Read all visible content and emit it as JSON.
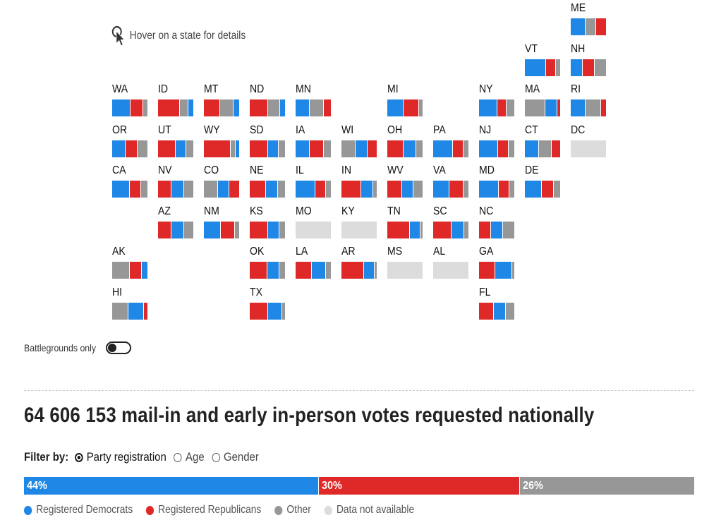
{
  "hint": {
    "text": "Hover on a state for details",
    "icon": "pointer-cursor-icon"
  },
  "colors": {
    "dem": "#1f87e5",
    "rep": "#df2929",
    "other": "#979797",
    "na": "#dcdcdc"
  },
  "states": [
    {
      "abbr": "ME",
      "shares": [
        0.42,
        0.3,
        0.28
      ],
      "order": [
        "dem",
        "oth",
        "rep"
      ]
    },
    {
      "abbr": "VT",
      "shares": [
        0.6,
        0.28,
        0.12
      ],
      "order": [
        "dem",
        "rep",
        "oth"
      ]
    },
    {
      "abbr": "NH",
      "shares": [
        0.34,
        0.34,
        0.32
      ],
      "order": [
        "dem",
        "rep",
        "oth"
      ]
    },
    {
      "abbr": "WA",
      "shares": [
        0.52,
        0.36,
        0.12
      ],
      "order": [
        "dem",
        "rep",
        "oth"
      ]
    },
    {
      "abbr": "ID",
      "shares": [
        0.62,
        0.22,
        0.16
      ],
      "order": [
        "rep",
        "oth",
        "dem"
      ]
    },
    {
      "abbr": "MT",
      "shares": [
        0.46,
        0.38,
        0.16
      ],
      "order": [
        "rep",
        "oth",
        "dem"
      ]
    },
    {
      "abbr": "ND",
      "shares": [
        0.52,
        0.34,
        0.14
      ],
      "order": [
        "rep",
        "oth",
        "dem"
      ]
    },
    {
      "abbr": "MN",
      "shares": [
        0.4,
        0.4,
        0.2
      ],
      "order": [
        "dem",
        "oth",
        "rep"
      ]
    },
    {
      "abbr": "MI",
      "shares": [
        0.46,
        0.44,
        0.1
      ],
      "order": [
        "dem",
        "rep",
        "oth"
      ]
    },
    {
      "abbr": "NY",
      "shares": [
        0.52,
        0.26,
        0.22
      ],
      "order": [
        "dem",
        "rep",
        "oth"
      ]
    },
    {
      "abbr": "MA",
      "shares": [
        0.58,
        0.34,
        0.08
      ],
      "order": [
        "oth",
        "dem",
        "rep"
      ]
    },
    {
      "abbr": "RI",
      "shares": [
        0.42,
        0.44,
        0.14
      ],
      "order": [
        "dem",
        "oth",
        "rep"
      ]
    },
    {
      "abbr": "OR",
      "shares": [
        0.38,
        0.34,
        0.28
      ],
      "order": [
        "dem",
        "rep",
        "oth"
      ]
    },
    {
      "abbr": "UT",
      "shares": [
        0.5,
        0.3,
        0.2
      ],
      "order": [
        "rep",
        "dem",
        "oth"
      ]
    },
    {
      "abbr": "WY",
      "shares": [
        0.78,
        0.12,
        0.1
      ],
      "order": [
        "rep",
        "oth",
        "dem"
      ]
    },
    {
      "abbr": "SD",
      "shares": [
        0.52,
        0.3,
        0.18
      ],
      "order": [
        "rep",
        "dem",
        "oth"
      ]
    },
    {
      "abbr": "IA",
      "shares": [
        0.4,
        0.4,
        0.2
      ],
      "order": [
        "dem",
        "rep",
        "oth"
      ]
    },
    {
      "abbr": "WI",
      "shares": [
        0.4,
        0.34,
        0.26
      ],
      "order": [
        "oth",
        "dem",
        "rep"
      ]
    },
    {
      "abbr": "OH",
      "shares": [
        0.46,
        0.36,
        0.18
      ],
      "order": [
        "rep",
        "dem",
        "oth"
      ]
    },
    {
      "abbr": "PA",
      "shares": [
        0.56,
        0.3,
        0.14
      ],
      "order": [
        "dem",
        "rep",
        "oth"
      ]
    },
    {
      "abbr": "NJ",
      "shares": [
        0.54,
        0.3,
        0.16
      ],
      "order": [
        "dem",
        "rep",
        "oth"
      ]
    },
    {
      "abbr": "CT",
      "shares": [
        0.4,
        0.36,
        0.24
      ],
      "order": [
        "dem",
        "oth",
        "rep"
      ]
    },
    {
      "abbr": "DC",
      "shares": [
        1.0
      ],
      "order": [
        "na"
      ]
    },
    {
      "abbr": "CA",
      "shares": [
        0.5,
        0.32,
        0.18
      ],
      "order": [
        "dem",
        "rep",
        "oth"
      ]
    },
    {
      "abbr": "NV",
      "shares": [
        0.38,
        0.36,
        0.26
      ],
      "order": [
        "rep",
        "dem",
        "oth"
      ]
    },
    {
      "abbr": "CO",
      "shares": [
        0.4,
        0.32,
        0.28
      ],
      "order": [
        "oth",
        "dem",
        "rep"
      ]
    },
    {
      "abbr": "NE",
      "shares": [
        0.46,
        0.34,
        0.2
      ],
      "order": [
        "rep",
        "dem",
        "oth"
      ]
    },
    {
      "abbr": "IL",
      "shares": [
        0.56,
        0.3,
        0.14
      ],
      "order": [
        "dem",
        "rep",
        "oth"
      ]
    },
    {
      "abbr": "IN",
      "shares": [
        0.56,
        0.34,
        0.1
      ],
      "order": [
        "rep",
        "dem",
        "oth"
      ]
    },
    {
      "abbr": "WV",
      "shares": [
        0.42,
        0.32,
        0.26
      ],
      "order": [
        "rep",
        "dem",
        "oth"
      ]
    },
    {
      "abbr": "VA",
      "shares": [
        0.46,
        0.4,
        0.14
      ],
      "order": [
        "dem",
        "rep",
        "oth"
      ]
    },
    {
      "abbr": "MD",
      "shares": [
        0.56,
        0.3,
        0.14
      ],
      "order": [
        "dem",
        "rep",
        "oth"
      ]
    },
    {
      "abbr": "DE",
      "shares": [
        0.48,
        0.34,
        0.18
      ],
      "order": [
        "dem",
        "rep",
        "oth"
      ]
    },
    {
      "abbr": "AZ",
      "shares": [
        0.38,
        0.36,
        0.26
      ],
      "order": [
        "rep",
        "dem",
        "oth"
      ]
    },
    {
      "abbr": "NM",
      "shares": [
        0.48,
        0.4,
        0.12
      ],
      "order": [
        "dem",
        "rep",
        "oth"
      ]
    },
    {
      "abbr": "KS",
      "shares": [
        0.52,
        0.32,
        0.16
      ],
      "order": [
        "rep",
        "dem",
        "oth"
      ]
    },
    {
      "abbr": "MO",
      "shares": [
        1.0
      ],
      "order": [
        "na"
      ]
    },
    {
      "abbr": "KY",
      "shares": [
        1.0
      ],
      "order": [
        "na"
      ]
    },
    {
      "abbr": "TN",
      "shares": [
        0.64,
        0.3,
        0.06
      ],
      "order": [
        "rep",
        "dem",
        "oth"
      ]
    },
    {
      "abbr": "SC",
      "shares": [
        0.52,
        0.36,
        0.12
      ],
      "order": [
        "rep",
        "dem",
        "oth"
      ]
    },
    {
      "abbr": "NC",
      "shares": [
        0.34,
        0.34,
        0.32
      ],
      "order": [
        "rep",
        "dem",
        "oth"
      ]
    },
    {
      "abbr": "AK",
      "shares": [
        0.5,
        0.34,
        0.16
      ],
      "order": [
        "oth",
        "rep",
        "dem"
      ]
    },
    {
      "abbr": "OK",
      "shares": [
        0.5,
        0.34,
        0.16
      ],
      "order": [
        "rep",
        "dem",
        "oth"
      ]
    },
    {
      "abbr": "LA",
      "shares": [
        0.46,
        0.4,
        0.14
      ],
      "order": [
        "rep",
        "dem",
        "oth"
      ]
    },
    {
      "abbr": "AR",
      "shares": [
        0.64,
        0.3,
        0.06
      ],
      "order": [
        "rep",
        "dem",
        "oth"
      ]
    },
    {
      "abbr": "MS",
      "shares": [
        1.0
      ],
      "order": [
        "na"
      ]
    },
    {
      "abbr": "AL",
      "shares": [
        1.0
      ],
      "order": [
        "na"
      ]
    },
    {
      "abbr": "GA",
      "shares": [
        0.46,
        0.48,
        0.06
      ],
      "order": [
        "rep",
        "dem",
        "oth"
      ]
    },
    {
      "abbr": "HI",
      "shares": [
        0.46,
        0.44,
        0.1
      ],
      "order": [
        "oth",
        "dem",
        "rep"
      ]
    },
    {
      "abbr": "TX",
      "shares": [
        0.52,
        0.4,
        0.08
      ],
      "order": [
        "rep",
        "dem",
        "oth"
      ]
    },
    {
      "abbr": "FL",
      "shares": [
        0.42,
        0.34,
        0.24
      ],
      "order": [
        "rep",
        "dem",
        "oth"
      ]
    }
  ],
  "battlegrounds": {
    "label": "Battlegrounds only",
    "on": false
  },
  "headline": "64 606 153 mail-in and early in-person votes requested nationally",
  "filter": {
    "label": "Filter by:",
    "options": [
      {
        "label": "Party registration",
        "selected": true
      },
      {
        "label": "Age",
        "selected": false
      },
      {
        "label": "Gender",
        "selected": false
      }
    ]
  },
  "national": [
    {
      "key": "dem",
      "value": 44,
      "label": "44%"
    },
    {
      "key": "rep",
      "value": 30,
      "label": "30%"
    },
    {
      "key": "oth",
      "value": 26,
      "label": "26%"
    }
  ],
  "legend": [
    {
      "key": "dem",
      "label": "Registered Democrats"
    },
    {
      "key": "rep",
      "label": "Registered Republicans"
    },
    {
      "key": "oth",
      "label": "Other"
    },
    {
      "key": "na",
      "label": "Data not available"
    }
  ]
}
